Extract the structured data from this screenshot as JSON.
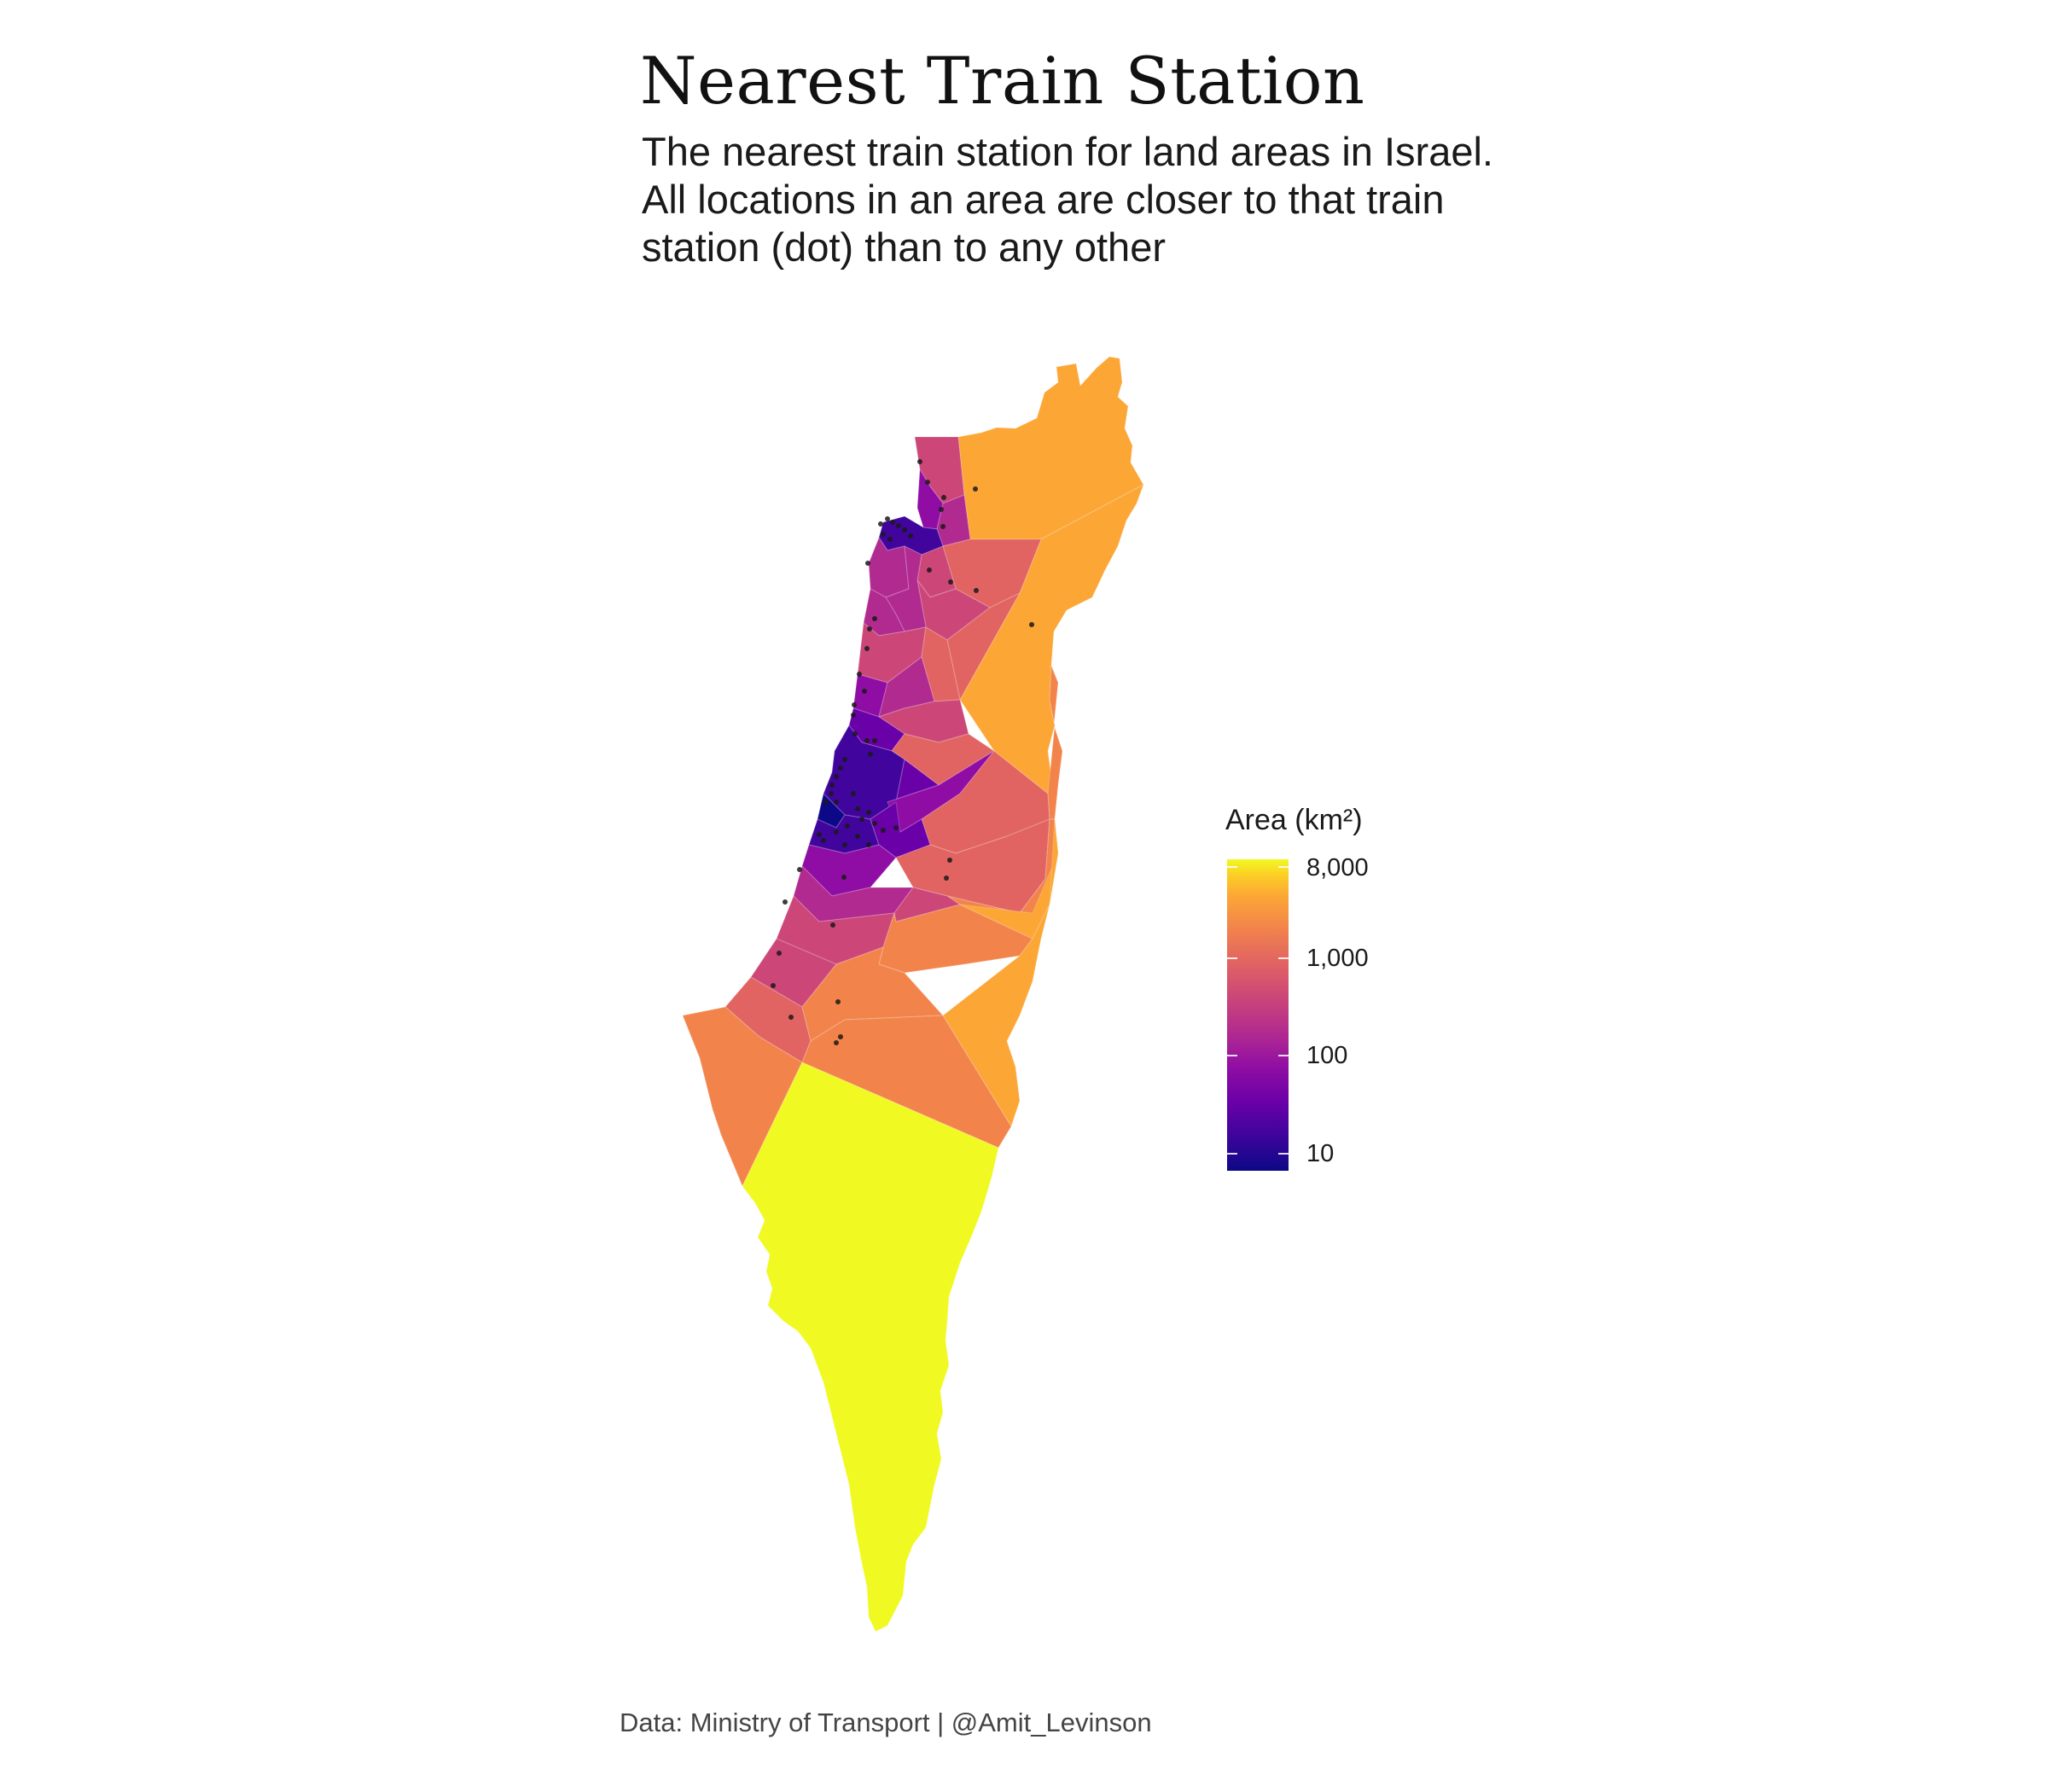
{
  "title": "Nearest Train Station",
  "subtitle_lines": [
    "The nearest train station for land areas in Israel.",
    "All locations in an area are closer to that train",
    "station (dot) than to any other"
  ],
  "legend": {
    "title": "Area (km²)",
    "ticks": [
      {
        "label": "8,000",
        "value": 8000
      },
      {
        "label": "1,000",
        "value": 1000
      },
      {
        "label": "100",
        "value": 100
      },
      {
        "label": "10",
        "value": 10
      }
    ],
    "scale": "log",
    "palette": "plasma",
    "color_low": "#0d0887",
    "color_high": "#f0f921"
  },
  "caption": "Data: Ministry of Transport | @Amit_Levinson",
  "map_colors": {
    "far_south": "#f0f921",
    "north_east": "#fca636",
    "dense_center": "#41049d",
    "station_dot": "#1a1a1a"
  }
}
